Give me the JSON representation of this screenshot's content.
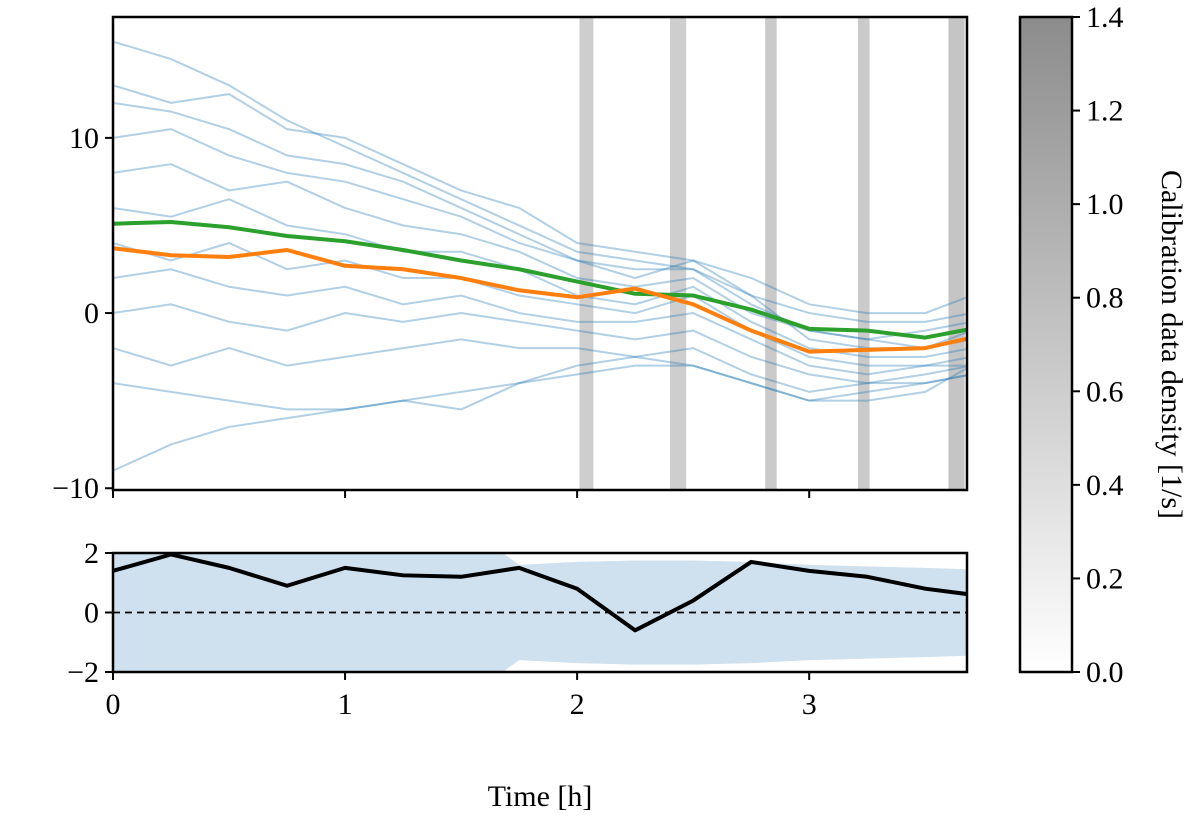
{
  "chart_data": [
    {
      "type": "line",
      "x": [
        0,
        0.25,
        0.5,
        0.75,
        1.0,
        1.25,
        1.5,
        1.75,
        2.0,
        2.25,
        2.5,
        2.75,
        3.0,
        3.25,
        3.5,
        3.7
      ],
      "xlim": [
        0,
        3.68
      ],
      "ylim": [
        -10.1,
        16.9
      ],
      "xticks": [
        0,
        1,
        2,
        3
      ],
      "yticks": [
        {
          "value": -10,
          "label": "−10"
        },
        0,
        10
      ],
      "samples": {
        "color": "#1f77b4",
        "values": [
          [
            15.5,
            14.5,
            13,
            11,
            9.5,
            8,
            6.5,
            5,
            3.5,
            3,
            2.5,
            1,
            0,
            -0.5,
            -0.5,
            0
          ],
          [
            12,
            11.5,
            10.5,
            9,
            8.5,
            7.5,
            6,
            4.5,
            3,
            2.5,
            2.5,
            0.5,
            -1,
            -1.5,
            -1,
            -0.5
          ],
          [
            10,
            10.5,
            9,
            8,
            7.5,
            6.5,
            5.5,
            4,
            3,
            2,
            3,
            1,
            -1.5,
            -2,
            -2,
            -1.5
          ],
          [
            8,
            8.5,
            7,
            7.5,
            6,
            5,
            4.5,
            3.5,
            2,
            1.5,
            2,
            0,
            -1,
            -1.5,
            -2,
            -1
          ],
          [
            6,
            5.5,
            6.5,
            5,
            4.5,
            3.5,
            3.5,
            2.5,
            1,
            0.5,
            1.5,
            -0.5,
            -2,
            -2.5,
            -2.5,
            -2
          ],
          [
            4,
            3,
            4,
            2.5,
            3,
            2,
            2,
            1,
            0.5,
            0,
            1,
            -1,
            -2.5,
            -3,
            -3,
            -2.5
          ],
          [
            2,
            2.5,
            1.5,
            1,
            1.5,
            0.5,
            1,
            0,
            -0.5,
            -0.5,
            0,
            -1.5,
            -3,
            -3.5,
            -3,
            -3
          ],
          [
            0,
            0.5,
            -0.5,
            -1,
            0,
            -0.5,
            0,
            -0.5,
            -1,
            -1.5,
            -1,
            -2.5,
            -3.5,
            -4,
            -3.5,
            -3
          ],
          [
            -2,
            -3,
            -2,
            -3,
            -2.5,
            -2,
            -1.5,
            -2,
            -2,
            -2.5,
            -2,
            -3.5,
            -4.5,
            -4,
            -4,
            -3.5
          ],
          [
            -9,
            -7.5,
            -6.5,
            -6,
            -5.5,
            -5,
            -4.5,
            -4,
            -3,
            -2.5,
            -3,
            -4,
            -5,
            -4.5,
            -4,
            -3.5
          ],
          [
            -4,
            -4.5,
            -5,
            -5.5,
            -5.5,
            -5,
            -5.5,
            -4,
            -3.5,
            -3,
            -3,
            -4,
            -5,
            -5,
            -4.5,
            -3
          ],
          [
            13,
            12,
            12.5,
            10.5,
            10,
            8.5,
            7,
            6,
            4,
            3.5,
            3,
            2,
            0.5,
            0,
            0,
            1
          ]
        ]
      },
      "series": [
        {
          "color": "#2ca02c",
          "values": [
            5.1,
            5.2,
            4.9,
            4.4,
            4.1,
            3.6,
            3.0,
            2.5,
            1.8,
            1.1,
            1.0,
            0.2,
            -0.9,
            -1.0,
            -1.4,
            -0.9
          ]
        },
        {
          "color": "#ff7f0e",
          "values": [
            3.7,
            3.3,
            3.2,
            3.6,
            2.7,
            2.5,
            2.0,
            1.3,
            0.9,
            1.4,
            0.5,
            -1.0,
            -2.2,
            -2.1,
            -2.0,
            -1.4
          ]
        }
      ],
      "shaded_regions": [
        {
          "x": [
            2.01,
            2.07
          ],
          "density": 0.6
        },
        {
          "x": [
            2.4,
            2.47
          ],
          "density": 0.6
        },
        {
          "x": [
            2.81,
            2.86
          ],
          "density": 0.65
        },
        {
          "x": [
            3.21,
            3.26
          ],
          "density": 0.65
        },
        {
          "x": [
            3.6,
            3.67
          ],
          "density": 0.7
        }
      ],
      "colorbar": {
        "label": "Calibration data density [1/s]",
        "color": "#8c8c8c",
        "lim": [
          0,
          1.4
        ],
        "ticks": [
          {
            "value": 0,
            "label": "0.0"
          },
          0.2,
          0.4,
          0.6,
          0.8,
          {
            "value": 1,
            "label": "1.0"
          },
          1.2,
          1.4
        ]
      }
    },
    {
      "type": "line",
      "x": [
        0,
        0.25,
        0.5,
        0.75,
        1.0,
        1.25,
        1.5,
        1.75,
        2.0,
        2.25,
        2.5,
        2.75,
        3.0,
        3.25,
        3.5,
        3.7
      ],
      "xlim": [
        0,
        3.68
      ],
      "ylim": [
        -2,
        2
      ],
      "xticks": [
        0,
        1,
        2,
        3
      ],
      "yticks": [
        {
          "value": -2,
          "label": "−2"
        },
        0,
        2
      ],
      "xlabel": "Time [h]",
      "reference_line": 0,
      "band": {
        "color": "#cfe0ee",
        "upper": [
          3,
          3,
          3,
          3,
          3,
          3,
          3,
          1.6,
          1.7,
          1.75,
          1.75,
          1.7,
          1.6,
          1.55,
          1.5,
          1.45
        ],
        "lower": [
          -3,
          -3,
          -3,
          -3,
          -3,
          -3,
          -3,
          -1.6,
          -1.7,
          -1.75,
          -1.75,
          -1.7,
          -1.6,
          -1.55,
          -1.5,
          -1.45
        ]
      },
      "series": [
        {
          "color": "#000000",
          "values": [
            1.4,
            1.95,
            1.5,
            0.9,
            1.5,
            1.25,
            1.2,
            1.5,
            0.8,
            -0.6,
            0.4,
            1.7,
            1.4,
            1.2,
            0.8,
            0.6
          ]
        }
      ]
    }
  ]
}
